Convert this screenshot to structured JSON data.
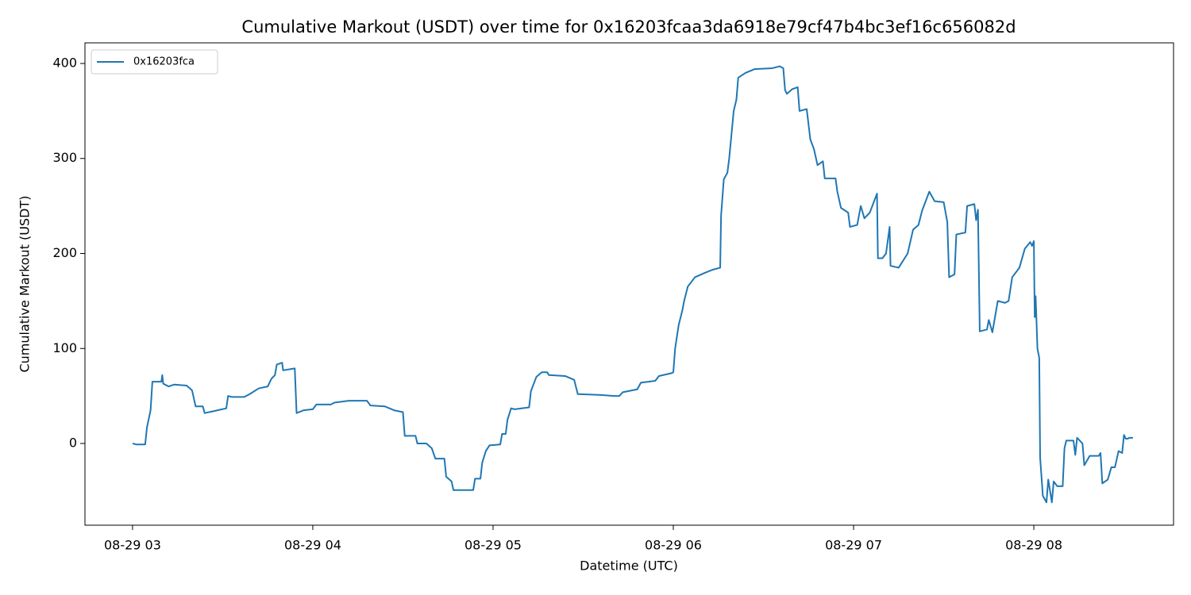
{
  "chart_data": {
    "type": "line",
    "title": "Cumulative Markout (USDT) over time for 0x16203fcaa3da6918e79cf47b4bc3ef16c656082d",
    "xlabel": "Datetime (UTC)",
    "ylabel": "Cumulative Markout (USDT)",
    "xlim": [
      2.736,
      8.775
    ],
    "ylim": [
      -86,
      421.7
    ],
    "xticks": [
      {
        "value": 3,
        "label": "08-29 03"
      },
      {
        "value": 4,
        "label": "08-29 04"
      },
      {
        "value": 5,
        "label": "08-29 05"
      },
      {
        "value": 6,
        "label": "08-29 06"
      },
      {
        "value": 7,
        "label": "08-29 07"
      },
      {
        "value": 8,
        "label": "08-29 08"
      }
    ],
    "yticks": [
      0,
      100,
      200,
      300,
      400
    ],
    "legend": "upper left",
    "x": [
      3.0,
      3.02,
      3.07,
      3.08,
      3.1,
      3.11,
      3.16,
      3.165,
      3.17,
      3.2,
      3.23,
      3.3,
      3.33,
      3.35,
      3.39,
      3.4,
      3.45,
      3.52,
      3.53,
      3.55,
      3.62,
      3.65,
      3.7,
      3.75,
      3.77,
      3.79,
      3.8,
      3.83,
      3.835,
      3.9,
      3.91,
      3.95,
      4.0,
      4.02,
      4.1,
      4.12,
      4.2,
      4.3,
      4.32,
      4.4,
      4.45,
      4.5,
      4.51,
      4.57,
      4.58,
      4.63,
      4.66,
      4.68,
      4.73,
      4.74,
      4.77,
      4.78,
      4.89,
      4.9,
      4.93,
      4.94,
      4.96,
      4.98,
      5.04,
      5.05,
      5.07,
      5.08,
      5.1,
      5.12,
      5.2,
      5.21,
      5.24,
      5.27,
      5.3,
      5.31,
      5.4,
      5.45,
      5.47,
      5.6,
      5.67,
      5.7,
      5.72,
      5.8,
      5.82,
      5.9,
      5.92,
      5.99,
      6.0,
      6.01,
      6.03,
      6.05,
      6.06,
      6.08,
      6.12,
      6.18,
      6.22,
      6.26,
      6.265,
      6.28,
      6.3,
      6.31,
      6.32,
      6.335,
      6.35,
      6.36,
      6.4,
      6.45,
      6.55,
      6.59,
      6.61,
      6.62,
      6.63,
      6.66,
      6.69,
      6.7,
      6.74,
      6.76,
      6.78,
      6.8,
      6.83,
      6.84,
      6.9,
      6.91,
      6.93,
      6.97,
      6.98,
      7.02,
      7.04,
      7.06,
      7.09,
      7.13,
      7.135,
      7.16,
      7.18,
      7.2,
      7.205,
      7.25,
      7.3,
      7.33,
      7.36,
      7.38,
      7.42,
      7.45,
      7.5,
      7.52,
      7.53,
      7.56,
      7.57,
      7.62,
      7.63,
      7.67,
      7.68,
      7.69,
      7.7,
      7.74,
      7.75,
      7.77,
      7.8,
      7.84,
      7.86,
      7.88,
      7.92,
      7.95,
      7.98,
      7.99,
      8.0,
      8.005,
      8.01,
      8.02,
      8.03,
      8.035,
      8.05,
      8.07,
      8.08,
      8.1,
      8.11,
      8.13,
      8.16,
      8.17,
      8.18,
      8.22,
      8.23,
      8.24,
      8.27,
      8.28,
      8.31,
      8.36,
      8.37,
      8.38,
      8.41,
      8.43,
      8.45,
      8.47,
      8.49,
      8.5,
      8.51,
      8.52,
      8.53,
      8.55
    ],
    "series": [
      {
        "name": "0x16203fca",
        "color": "#1f77b4",
        "values": [
          0,
          -1,
          -1,
          17,
          35,
          65,
          65,
          72,
          63,
          60,
          62,
          61,
          56,
          39,
          39,
          32,
          34,
          37,
          50,
          49,
          49,
          52,
          58,
          60,
          68,
          72,
          83,
          85,
          77,
          79,
          32,
          35,
          36,
          41,
          41,
          43,
          45,
          45,
          40,
          39,
          35,
          33,
          8,
          8,
          0,
          0,
          -5,
          -16,
          -16,
          -35,
          -40,
          -49,
          -49,
          -37,
          -37,
          -20,
          -8,
          -2,
          -1,
          10,
          10,
          25,
          37,
          36,
          38,
          55,
          70,
          75,
          75,
          72,
          71,
          67,
          52,
          51,
          50,
          50,
          54,
          57,
          64,
          66,
          71,
          74,
          75,
          100,
          125,
          140,
          150,
          165,
          175,
          180,
          183,
          185,
          240,
          278,
          285,
          300,
          320,
          350,
          362,
          385,
          390,
          394,
          395,
          397,
          395,
          372,
          368,
          373,
          375,
          350,
          352,
          320,
          310,
          293,
          297,
          279,
          279,
          265,
          248,
          243,
          228,
          230,
          250,
          237,
          243,
          263,
          195,
          195,
          200,
          228,
          187,
          185,
          200,
          225,
          230,
          245,
          265,
          255,
          254,
          233,
          175,
          178,
          220,
          222,
          250,
          252,
          235,
          246,
          118,
          120,
          130,
          117,
          150,
          148,
          150,
          175,
          185,
          205,
          212,
          208,
          213,
          133,
          155,
          100,
          90,
          -15,
          -55,
          -62,
          -38,
          -62,
          -40,
          -45,
          -45,
          -5,
          3,
          3,
          -12,
          6,
          0,
          -23,
          -13,
          -13,
          -10,
          -42,
          -38,
          -25,
          -25,
          -8,
          -10,
          9,
          5,
          5,
          6,
          6
        ]
      }
    ]
  }
}
